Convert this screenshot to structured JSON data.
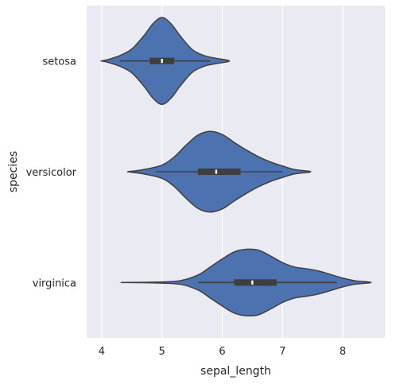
{
  "chart_data": {
    "type": "violin",
    "orientation": "horizontal",
    "xlabel": "sepal_length",
    "ylabel": "species",
    "xlim": [
      3.75,
      8.7
    ],
    "x_ticks": [
      4,
      5,
      6,
      7,
      8
    ],
    "grid": true,
    "fill_color": "#4c72b0",
    "edge_color": "#3f3f3f",
    "background_color": "#eaeaf2",
    "categories": [
      "setosa",
      "versicolor",
      "virginica"
    ],
    "violins": [
      {
        "category": "setosa",
        "min": 4.3,
        "q1": 4.8,
        "median": 5.0,
        "q3": 5.2,
        "max": 5.8,
        "density": [
          [
            3.99,
            0.0
          ],
          [
            4.1,
            0.03
          ],
          [
            4.3,
            0.12
          ],
          [
            4.5,
            0.27
          ],
          [
            4.7,
            0.57
          ],
          [
            4.85,
            0.84
          ],
          [
            5.0,
            0.98
          ],
          [
            5.15,
            0.84
          ],
          [
            5.3,
            0.57
          ],
          [
            5.5,
            0.26
          ],
          [
            5.7,
            0.12
          ],
          [
            5.9,
            0.06
          ],
          [
            6.12,
            0.0
          ]
        ]
      },
      {
        "category": "versicolor",
        "min": 4.9,
        "q1": 5.6,
        "median": 5.9,
        "q3": 6.3,
        "max": 7.0,
        "density": [
          [
            4.43,
            0.0
          ],
          [
            4.7,
            0.05
          ],
          [
            5.0,
            0.15
          ],
          [
            5.2,
            0.33
          ],
          [
            5.4,
            0.6
          ],
          [
            5.6,
            0.83
          ],
          [
            5.8,
            0.91
          ],
          [
            6.0,
            0.84
          ],
          [
            6.2,
            0.66
          ],
          [
            6.4,
            0.49
          ],
          [
            6.6,
            0.34
          ],
          [
            6.8,
            0.22
          ],
          [
            7.0,
            0.13
          ],
          [
            7.2,
            0.05
          ],
          [
            7.47,
            0.0
          ]
        ]
      },
      {
        "category": "virginica",
        "min": 5.6,
        "q1": 6.2,
        "median": 6.5,
        "q3": 6.9,
        "max": 7.9,
        "density": [
          [
            4.32,
            0.0
          ],
          [
            4.9,
            0.01
          ],
          [
            5.3,
            0.04
          ],
          [
            5.6,
            0.17
          ],
          [
            5.8,
            0.35
          ],
          [
            6.0,
            0.53
          ],
          [
            6.2,
            0.69
          ],
          [
            6.4,
            0.75
          ],
          [
            6.6,
            0.73
          ],
          [
            6.8,
            0.6
          ],
          [
            7.0,
            0.45
          ],
          [
            7.2,
            0.35
          ],
          [
            7.4,
            0.31
          ],
          [
            7.6,
            0.26
          ],
          [
            7.8,
            0.18
          ],
          [
            8.0,
            0.1
          ],
          [
            8.2,
            0.04
          ],
          [
            8.47,
            0.0
          ]
        ]
      }
    ]
  }
}
